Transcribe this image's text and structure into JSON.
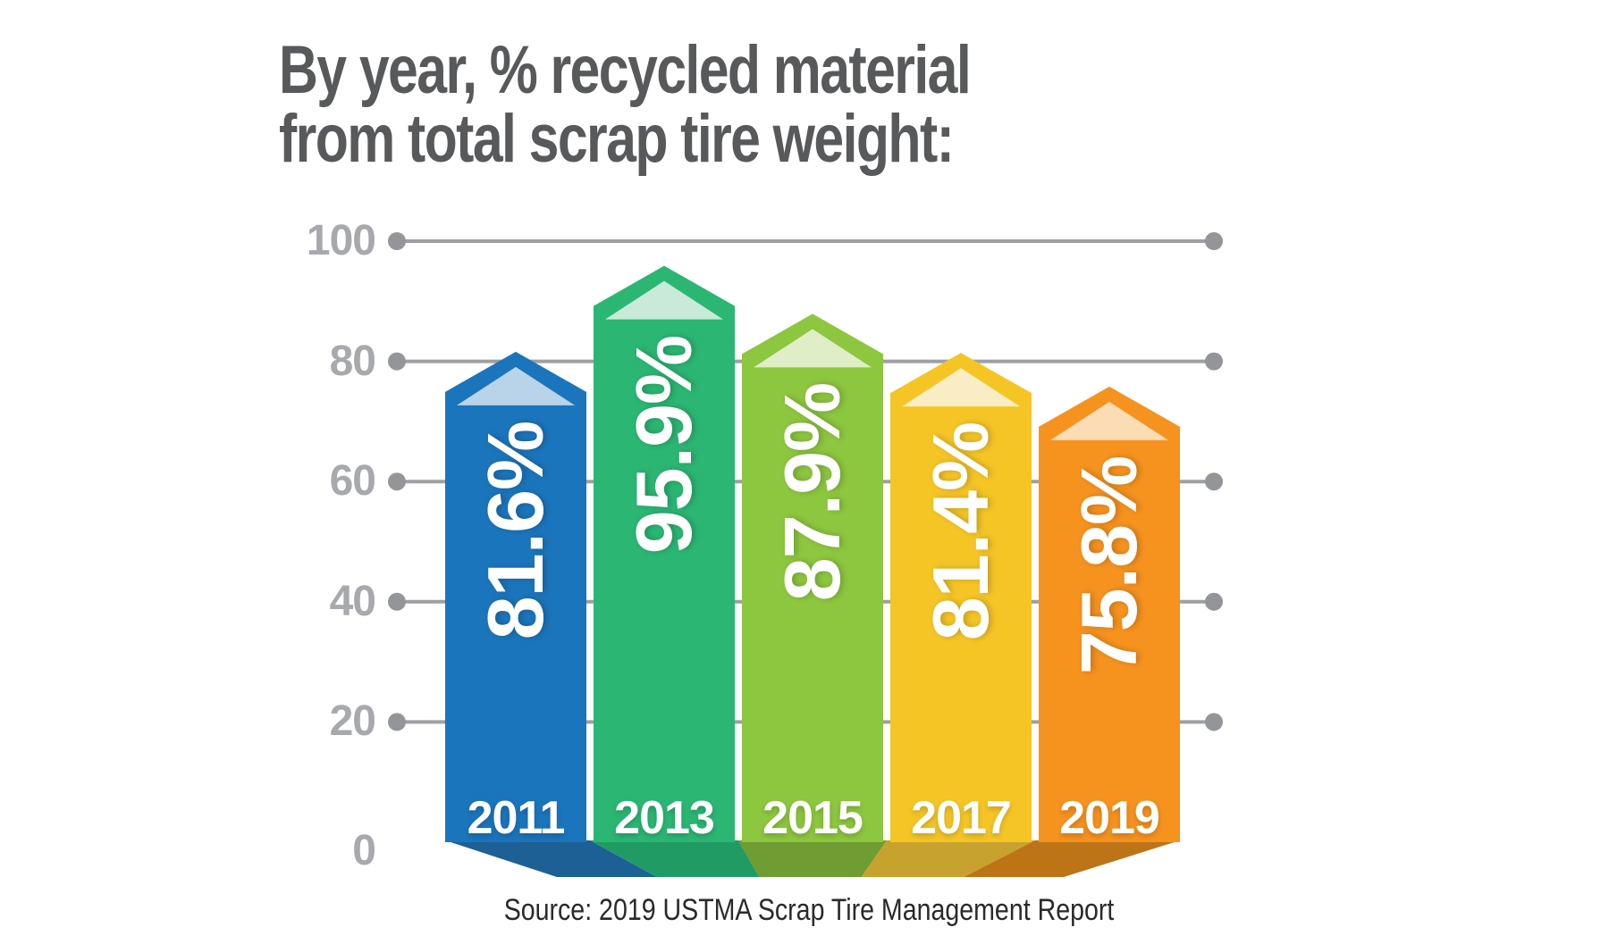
{
  "title": {
    "line1": "By year, % recycled material",
    "line2": "from total scrap tire weight:"
  },
  "source_caption": "Source: 2019 USTMA Scrap Tire Management Report",
  "colors": {
    "title_text": "#58595b",
    "axis_text": "#a7a9ac",
    "gridline": "#9d9fa2",
    "gridline_dot": "#939598",
    "bar_label_text": "#ffffff",
    "source_text": "#2a2a2a",
    "background": "#ffffff"
  },
  "chart_data": {
    "type": "bar",
    "title": "By year, % recycled material from total scrap tire weight:",
    "categories": [
      "2011",
      "2013",
      "2015",
      "2017",
      "2019"
    ],
    "values": [
      81.6,
      95.9,
      87.9,
      81.4,
      75.8
    ],
    "value_labels": [
      "81.6%",
      "95.9%",
      "87.9%",
      "81.4%",
      "75.8%"
    ],
    "xlabel": "year",
    "ylabel": "% recycled material from total scrap tire weight",
    "ylim": [
      0,
      100
    ],
    "yticks": [
      0,
      20,
      40,
      60,
      80,
      100
    ],
    "grid": true,
    "legend": false,
    "source": "Source: 2019 USTMA Scrap Tire Management Report",
    "bar_colors": [
      "#1b75bc",
      "#2bb673",
      "#8dc63f",
      "#f5c526",
      "#f6921e"
    ],
    "bar_highlight_colors": [
      "#b9d3e9",
      "#c9e9d9",
      "#dfeec6",
      "#faecc4",
      "#fcdcb4"
    ],
    "bar_shadow_colors": [
      "#1c6096",
      "#1f9b63",
      "#6f9c33",
      "#c8a22e",
      "#bd7416"
    ]
  }
}
